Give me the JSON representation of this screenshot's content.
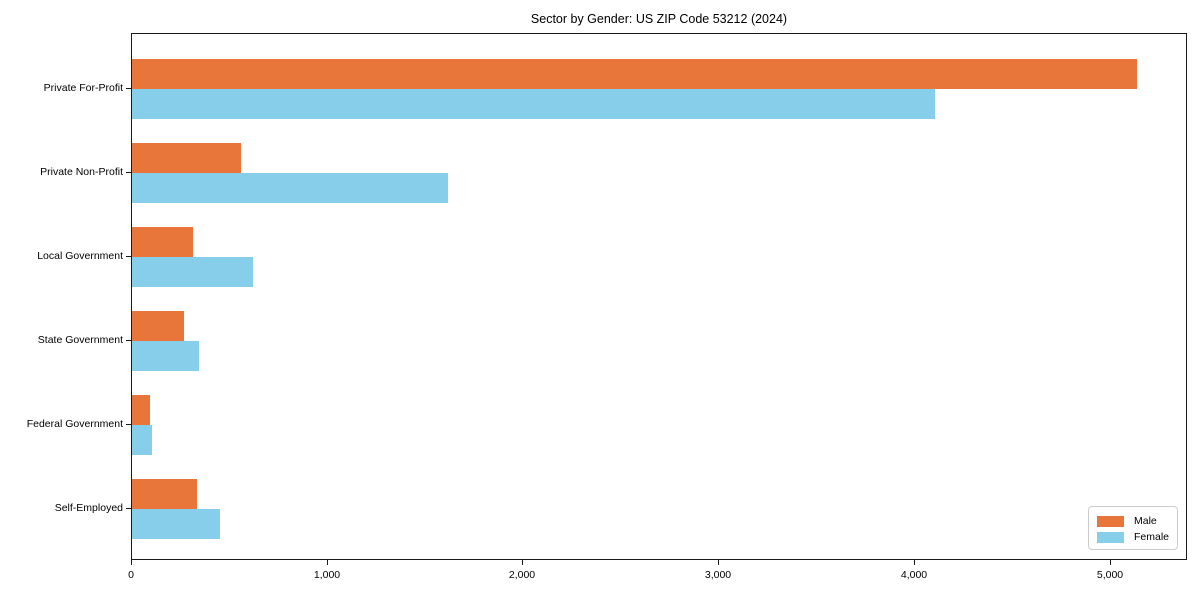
{
  "chart_data": {
    "type": "bar",
    "orientation": "horizontal",
    "title": "Sector by Gender: US ZIP Code 53212 (2024)",
    "categories": [
      "Private For-Profit",
      "Private Non-Profit",
      "Local Government",
      "State Government",
      "Federal Government",
      "Self-Employed"
    ],
    "series": [
      {
        "name": "Male",
        "color": "#e8763b",
        "values": [
          5135,
          555,
          310,
          265,
          90,
          330
        ]
      },
      {
        "name": "Female",
        "color": "#87ceeb",
        "values": [
          4100,
          1615,
          620,
          340,
          100,
          450
        ]
      }
    ],
    "x_ticks": [
      {
        "label": "0",
        "value": 0
      },
      {
        "label": "1,000",
        "value": 1000
      },
      {
        "label": "2,000",
        "value": 2000
      },
      {
        "label": "3,000",
        "value": 3000
      },
      {
        "label": "4,000",
        "value": 4000
      },
      {
        "label": "5,000",
        "value": 5000
      }
    ],
    "xlim": [
      0,
      5395
    ],
    "grid": false,
    "legend_position": "lower right"
  }
}
